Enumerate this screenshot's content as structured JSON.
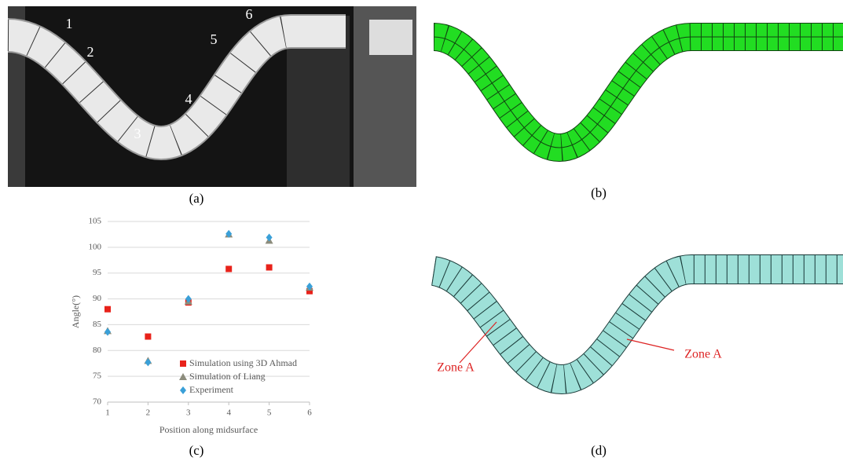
{
  "photo_labels": [
    "1",
    "2",
    "3",
    "4",
    "5",
    "6"
  ],
  "panel_labels": [
    "(a)",
    "(b)",
    "(c)",
    "(d)"
  ],
  "annotations": [
    "Zone A",
    "Zone A"
  ],
  "chart_data": {
    "type": "scatter",
    "x_label": "Position along midsurface",
    "y_label": "Angle(°)",
    "x": [
      1,
      2,
      3,
      4,
      5,
      6
    ],
    "xlim": [
      1,
      6
    ],
    "xticks": [
      1,
      2,
      3,
      4,
      5,
      6
    ],
    "ylim": [
      70,
      105
    ],
    "yticks": [
      70,
      75,
      80,
      85,
      90,
      95,
      100,
      105
    ],
    "grid": true,
    "series": [
      {
        "name": "Simulation using 3D Ahmad",
        "color": "#e8221a",
        "marker": "square",
        "values": [
          88,
          82.7,
          89.3,
          95.8,
          96.1,
          91.5
        ]
      },
      {
        "name": "Simulation of Liang",
        "color": "#8c8c7c",
        "marker": "triangle",
        "values": [
          83.8,
          78,
          89.5,
          102.5,
          101.3,
          92.2
        ]
      },
      {
        "name": "Experiment",
        "color": "#3aa0d8",
        "marker": "diamond",
        "values": [
          83.6,
          77.7,
          90,
          102.6,
          101.9,
          92.4
        ]
      }
    ]
  }
}
